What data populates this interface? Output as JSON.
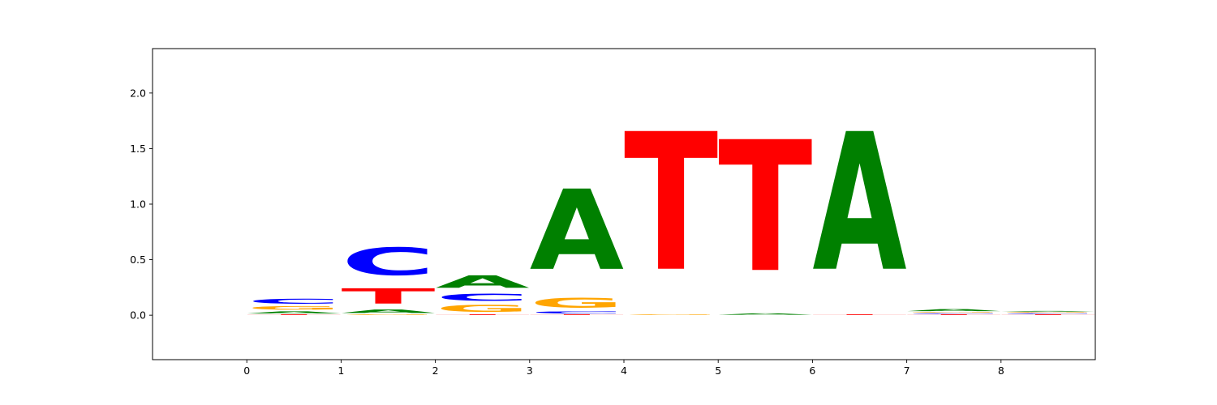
{
  "chart_data": {
    "type": "sequence-logo",
    "title": "",
    "xlabel": "",
    "ylabel": "",
    "xlim": [
      -1,
      9
    ],
    "ylim": [
      -0.4,
      2.4
    ],
    "x_ticks": [
      "0",
      "1",
      "2",
      "3",
      "4",
      "5",
      "6",
      "7",
      "8"
    ],
    "y_ticks": [
      "0.0",
      "0.5",
      "1.0",
      "1.5",
      "2.0"
    ],
    "y_tick_values": [
      0.0,
      0.5,
      1.0,
      1.5,
      2.0
    ],
    "colors": {
      "A": "#008000",
      "C": "#0000ff",
      "G": "#ffa500",
      "T": "#ff0000"
    },
    "positions": [
      {
        "pos": 0,
        "stack": [
          {
            "base": "T",
            "height": 0.01
          },
          {
            "base": "A",
            "height": 0.03
          },
          {
            "base": "G",
            "height": 0.05
          },
          {
            "base": "C",
            "height": 0.07
          }
        ]
      },
      {
        "pos": 1,
        "stack": [
          {
            "base": "G",
            "height": 0.01
          },
          {
            "base": "A",
            "height": 0.05
          },
          {
            "base": "T",
            "height": 0.22
          },
          {
            "base": "C",
            "height": 0.4
          }
        ]
      },
      {
        "pos": 2,
        "stack": [
          {
            "base": "T",
            "height": 0.01
          },
          {
            "base": "G",
            "height": 0.1
          },
          {
            "base": "C",
            "height": 0.1
          },
          {
            "base": "A",
            "height": 0.18
          }
        ]
      },
      {
        "pos": 3,
        "stack": [
          {
            "base": "T",
            "height": 0.01
          },
          {
            "base": "C",
            "height": 0.03
          },
          {
            "base": "G",
            "height": 0.14
          },
          {
            "base": "A",
            "height": 1.16
          }
        ]
      },
      {
        "pos": 4,
        "stack": [
          {
            "base": "G",
            "height": 0.01
          },
          {
            "base": "T",
            "height": 1.99
          }
        ]
      },
      {
        "pos": 5,
        "stack": [
          {
            "base": "A",
            "height": 0.02
          },
          {
            "base": "T",
            "height": 1.89
          }
        ]
      },
      {
        "pos": 6,
        "stack": [
          {
            "base": "T",
            "height": 0.01
          },
          {
            "base": "A",
            "height": 1.99
          }
        ]
      },
      {
        "pos": 7,
        "stack": [
          {
            "base": "T",
            "height": 0.01
          },
          {
            "base": "C",
            "height": 0.01
          },
          {
            "base": "G",
            "height": 0.01
          },
          {
            "base": "A",
            "height": 0.03
          }
        ]
      },
      {
        "pos": 8,
        "stack": [
          {
            "base": "T",
            "height": 0.01
          },
          {
            "base": "C",
            "height": 0.01
          },
          {
            "base": "G",
            "height": 0.01
          },
          {
            "base": "A",
            "height": 0.01
          }
        ]
      }
    ]
  }
}
